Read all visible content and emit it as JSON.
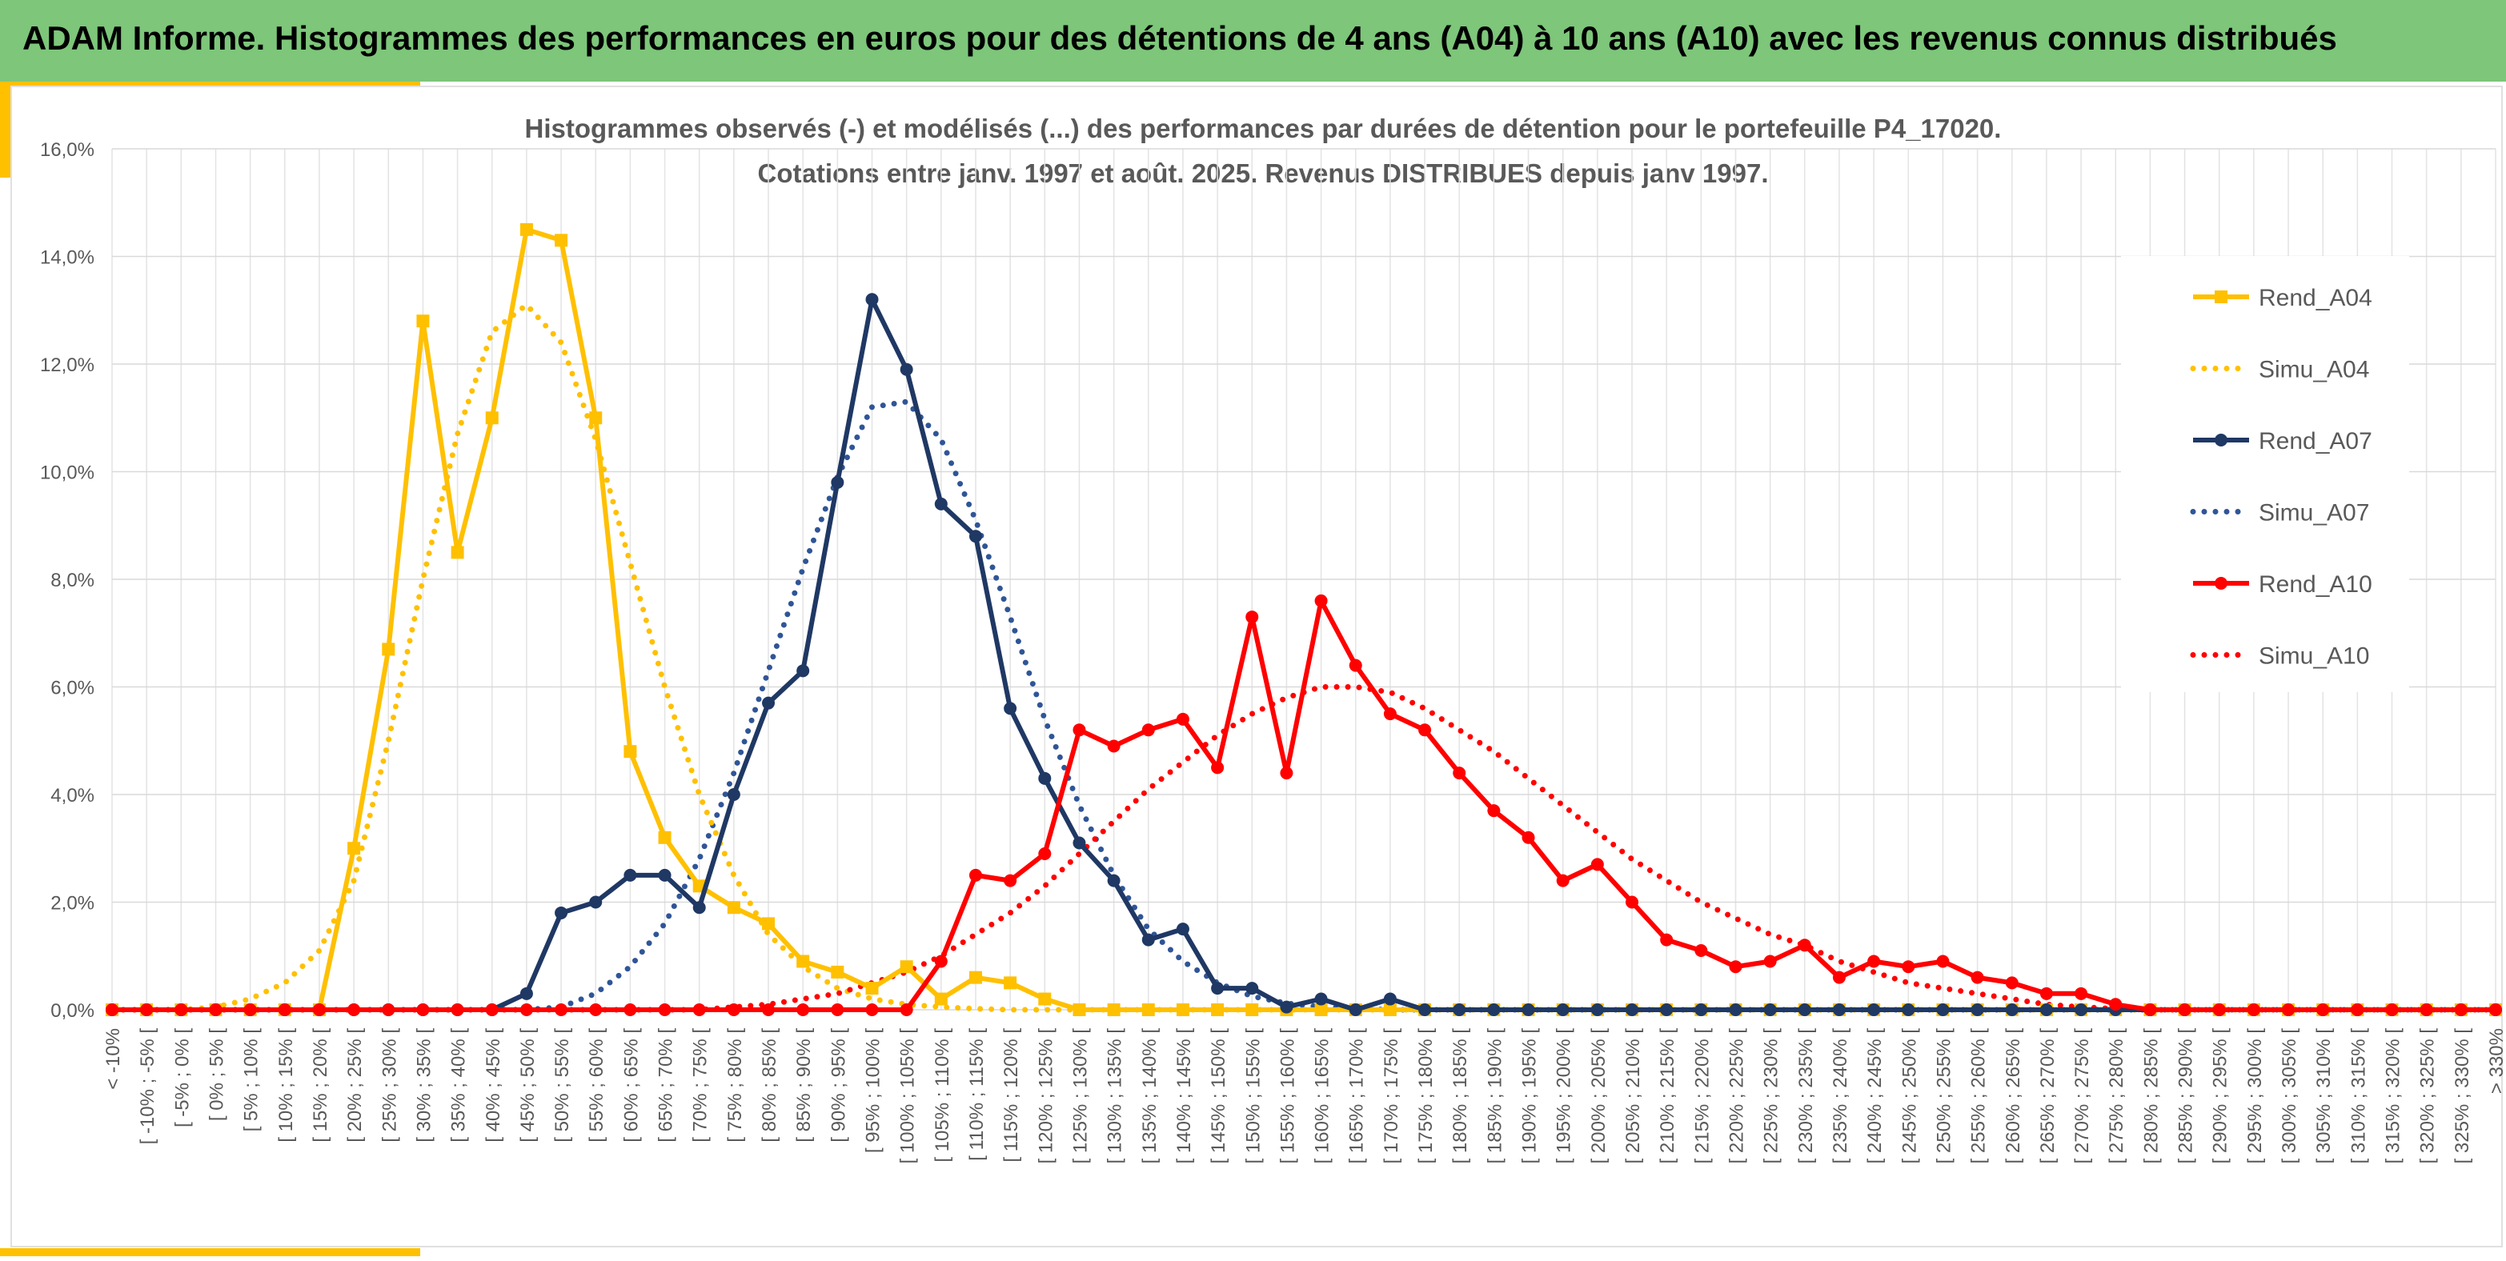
{
  "header": {
    "title": "ADAM Informe. Histogrammes des performances en euros pour des détentions de 4 ans (A04) à 10 ans (A10) avec les revenus connus distribués"
  },
  "colors": {
    "banner": "#7dc67a",
    "accent": "#ffc000",
    "a04": "#ffc000",
    "a07": "#1f3864",
    "a07_simu": "#2f5597",
    "a10": "#ff0000",
    "grid": "#d9d9d9"
  },
  "chart_data": {
    "type": "line",
    "title": "Histogrammes observés (-) et modélisés (...) des performances par durées de détention pour le portefeuille P4_17020.",
    "subtitle": "Cotations entre janv. 1997 et août. 2025. Revenus DISTRIBUES depuis janv 1997.",
    "xlabel": "",
    "ylabel": "",
    "ylim": [
      0,
      16
    ],
    "yticks": [
      "0,0%",
      "2,0%",
      "4,0%",
      "6,0%",
      "8,0%",
      "10,0%",
      "12,0%",
      "14,0%",
      "16,0%"
    ],
    "grid": true,
    "legend_position": "right",
    "categories": [
      "< -10%",
      "[ -10% ; -5% [",
      "[ -5% ; 0% [",
      "[ 0% ; 5% [",
      "[ 5% ; 10% [",
      "[ 10% ; 15% [",
      "[ 15% ; 20% [",
      "[ 20% ; 25% [",
      "[ 25% ; 30% [",
      "[ 30% ; 35% [",
      "[ 35% ; 40% [",
      "[ 40% ; 45% [",
      "[ 45% ; 50% [",
      "[ 50% ; 55% [",
      "[ 55% ; 60% [",
      "[ 60% ; 65% [",
      "[ 65% ; 70% [",
      "[ 70% ; 75% [",
      "[ 75% ; 80% [",
      "[ 80% ; 85% [",
      "[ 85% ; 90% [",
      "[ 90% ; 95% [",
      "[ 95% ; 100% [",
      "[ 100% ; 105% [",
      "[ 105% ; 110% [",
      "[ 110% ; 115% [",
      "[ 115% ; 120% [",
      "[ 120% ; 125% [",
      "[ 125% ; 130% [",
      "[ 130% ; 135% [",
      "[ 135% ; 140% [",
      "[ 140% ; 145% [",
      "[ 145% ; 150% [",
      "[ 150% ; 155% [",
      "[ 155% ; 160% [",
      "[ 160% ; 165% [",
      "[ 165% ; 170% [",
      "[ 170% ; 175% [",
      "[ 175% ; 180% [",
      "[ 180% ; 185% [",
      "[ 185% ; 190% [",
      "[ 190% ; 195% [",
      "[ 195% ; 200% [",
      "[ 200% ; 205% [",
      "[ 205% ; 210% [",
      "[ 210% ; 215% [",
      "[ 215% ; 220% [",
      "[ 220% ; 225% [",
      "[ 225% ; 230% [",
      "[ 230% ; 235% [",
      "[ 235% ; 240% [",
      "[ 240% ; 245% [",
      "[ 245% ; 250% [",
      "[ 250% ; 255% [",
      "[ 255% ; 260% [",
      "[ 260% ; 265% [",
      "[ 265% ; 270% [",
      "[ 270% ; 275% [",
      "[ 275% ; 280% [",
      "[ 280% ; 285% [",
      "[ 285% ; 290% [",
      "[ 290% ; 295% [",
      "[ 295% ; 300% [",
      "[ 300% ; 305% [",
      "[ 305% ; 310% [",
      "[ 310% ; 315% [",
      "[ 315% ; 320% [",
      "[ 320% ; 325% [",
      "[ 325% ; 330% [",
      "> 330%"
    ],
    "series": [
      {
        "name": "Rend_A04",
        "style": "solid",
        "marker": "square",
        "color": "#ffc000",
        "values": [
          0,
          0,
          0,
          0,
          0,
          0,
          0,
          3.0,
          6.7,
          12.8,
          8.5,
          11.0,
          14.5,
          14.3,
          11.0,
          4.8,
          3.2,
          2.3,
          1.9,
          1.6,
          0.9,
          0.7,
          0.4,
          0.8,
          0.2,
          0.6,
          0.5,
          0.2,
          0,
          0,
          0,
          0,
          0,
          0,
          0,
          0,
          0,
          0,
          0,
          0,
          0,
          0,
          0,
          0,
          0,
          0,
          0,
          0,
          0,
          0,
          0,
          0,
          0,
          0,
          0,
          0,
          0,
          0,
          0,
          0,
          0,
          0,
          0,
          0,
          0,
          0,
          0,
          0,
          0,
          0
        ]
      },
      {
        "name": "Simu_A04",
        "style": "dotted",
        "marker": "none",
        "color": "#ffc000",
        "values": [
          0,
          0,
          0,
          0.05,
          0.2,
          0.5,
          1.1,
          2.4,
          5.0,
          8.0,
          10.7,
          12.6,
          13.1,
          12.4,
          10.6,
          8.3,
          6.0,
          4.0,
          2.5,
          1.4,
          0.8,
          0.4,
          0.2,
          0.1,
          0.05,
          0.02,
          0,
          0,
          0,
          0,
          0,
          0,
          0,
          0,
          0,
          0,
          0,
          0,
          0,
          0,
          0,
          0,
          0,
          0,
          0,
          0,
          0,
          0,
          0,
          0,
          0,
          0,
          0,
          0,
          0,
          0,
          0,
          0,
          0,
          0,
          0,
          0,
          0,
          0,
          0,
          0,
          0,
          0,
          0,
          0
        ]
      },
      {
        "name": "Rend_A07",
        "style": "solid",
        "marker": "circle",
        "color": "#1f3864",
        "values": [
          0,
          0,
          0,
          0,
          0,
          0,
          0,
          0,
          0,
          0,
          0,
          0,
          0.3,
          1.8,
          2.0,
          2.5,
          2.5,
          1.9,
          4.0,
          5.7,
          6.3,
          9.8,
          13.2,
          11.9,
          9.4,
          8.8,
          5.6,
          4.3,
          3.1,
          2.4,
          1.3,
          1.5,
          0.4,
          0.4,
          0.05,
          0.2,
          0,
          0.2,
          0,
          0,
          0,
          0,
          0,
          0,
          0,
          0,
          0,
          0,
          0,
          0,
          0,
          0,
          0,
          0,
          0,
          0,
          0,
          0,
          0,
          0,
          0,
          0,
          0,
          0,
          0,
          0,
          0,
          0,
          0,
          0
        ]
      },
      {
        "name": "Simu_A07",
        "style": "dotted",
        "marker": "none",
        "color": "#2f5597",
        "values": [
          0,
          0,
          0,
          0,
          0,
          0,
          0,
          0,
          0,
          0,
          0,
          0,
          0,
          0.05,
          0.3,
          0.8,
          1.6,
          2.8,
          4.4,
          6.3,
          8.2,
          9.9,
          11.2,
          11.3,
          10.6,
          9.1,
          7.3,
          5.4,
          3.8,
          2.5,
          1.5,
          0.9,
          0.5,
          0.25,
          0.12,
          0.05,
          0.02,
          0,
          0,
          0,
          0,
          0,
          0,
          0,
          0,
          0,
          0,
          0,
          0,
          0,
          0,
          0,
          0,
          0,
          0,
          0,
          0,
          0,
          0,
          0,
          0,
          0,
          0,
          0,
          0,
          0,
          0,
          0,
          0,
          0
        ]
      },
      {
        "name": "Rend_A10",
        "style": "solid",
        "marker": "circle",
        "color": "#ff0000",
        "values": [
          0,
          0,
          0,
          0,
          0,
          0,
          0,
          0,
          0,
          0,
          0,
          0,
          0,
          0,
          0,
          0,
          0,
          0,
          0,
          0,
          0,
          0,
          0,
          0,
          0.9,
          2.5,
          2.4,
          2.9,
          5.2,
          4.9,
          5.2,
          5.4,
          4.5,
          7.3,
          4.4,
          7.6,
          6.4,
          5.5,
          5.2,
          4.4,
          3.7,
          3.2,
          2.4,
          2.7,
          2.0,
          1.3,
          1.1,
          0.8,
          0.9,
          1.2,
          0.6,
          0.9,
          0.8,
          0.9,
          0.6,
          0.5,
          0.3,
          0.3,
          0.1,
          0,
          0,
          0,
          0,
          0,
          0,
          0,
          0,
          0,
          0,
          0
        ]
      },
      {
        "name": "Simu_A10",
        "style": "dotted",
        "marker": "none",
        "color": "#ff0000",
        "values": [
          0,
          0,
          0,
          0,
          0,
          0,
          0,
          0,
          0,
          0,
          0,
          0,
          0,
          0,
          0,
          0,
          0,
          0,
          0.05,
          0.1,
          0.2,
          0.3,
          0.5,
          0.7,
          1.0,
          1.4,
          1.8,
          2.3,
          2.9,
          3.5,
          4.1,
          4.6,
          5.1,
          5.5,
          5.8,
          6.0,
          6.0,
          5.9,
          5.6,
          5.2,
          4.8,
          4.3,
          3.8,
          3.3,
          2.8,
          2.4,
          2.0,
          1.7,
          1.4,
          1.2,
          0.9,
          0.7,
          0.5,
          0.4,
          0.3,
          0.2,
          0.1,
          0.05,
          0.02,
          0,
          0,
          0,
          0,
          0,
          0,
          0,
          0,
          0,
          0,
          0
        ]
      }
    ]
  }
}
